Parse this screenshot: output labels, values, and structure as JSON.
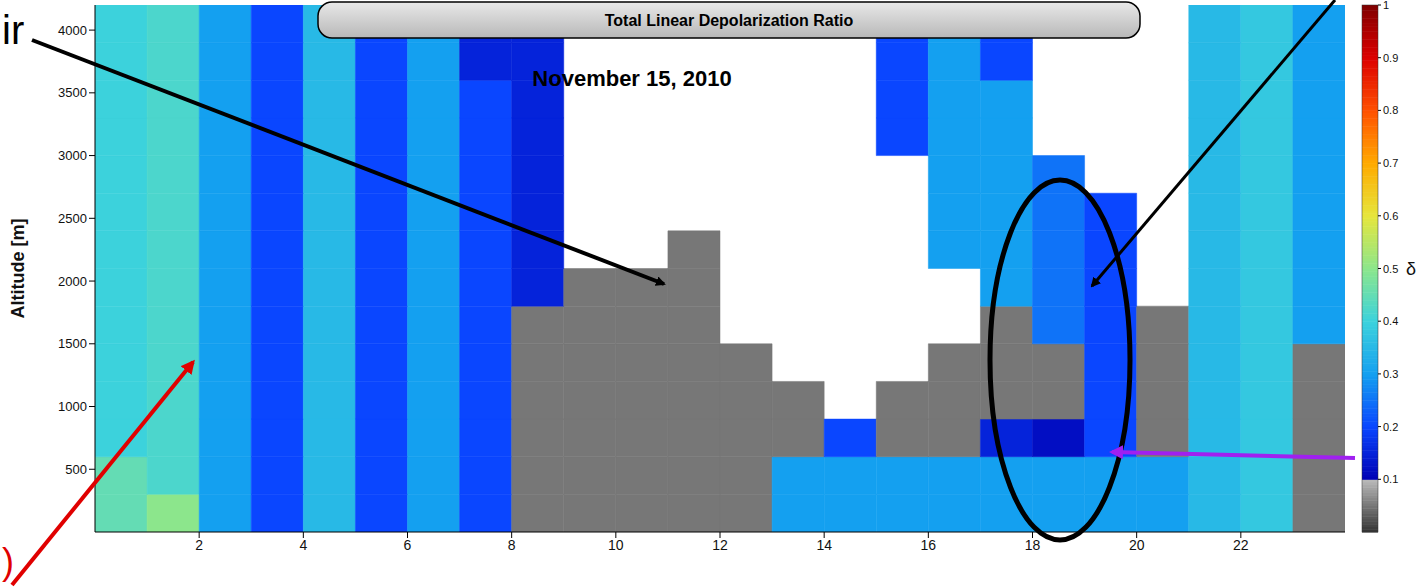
{
  "chart_data": {
    "type": "heatmap",
    "title": "Total Linear Depolarization Ratio",
    "subtitle": "November 15, 2010",
    "y_label": "Altitude [m]",
    "xlim": [
      0,
      24
    ],
    "xticks": [
      2,
      4,
      6,
      8,
      10,
      12,
      14,
      16,
      18,
      20,
      22
    ],
    "ylim": [
      0,
      4200
    ],
    "yticks": [
      500,
      1000,
      1500,
      2000,
      2500,
      3000,
      3500,
      4000
    ],
    "grid": false,
    "x_bins": [
      0,
      1,
      2,
      3,
      4,
      5,
      6,
      7,
      8,
      9,
      10,
      11,
      12,
      13,
      14,
      15,
      16,
      17,
      18,
      19,
      20,
      21,
      22,
      23,
      24
    ],
    "y_bins": [
      0,
      300,
      600,
      900,
      1200,
      1500,
      1800,
      2100,
      2400,
      2700,
      3000,
      3300,
      3600,
      3900,
      4200
    ],
    "cells": [
      [
        0.45,
        0.5,
        0.3,
        0.2,
        0.35,
        0.2,
        0.3,
        0.2,
        0.05,
        0.05,
        0.05,
        0.05,
        0.05,
        0.3,
        0.3,
        0.3,
        0.3,
        0.3,
        0.3,
        0.3,
        0.3,
        0.35,
        0.38,
        0.05
      ],
      [
        0.45,
        0.42,
        0.3,
        0.2,
        0.35,
        0.2,
        0.3,
        0.2,
        0.05,
        0.05,
        0.05,
        0.05,
        0.05,
        0.3,
        0.3,
        0.3,
        0.3,
        0.3,
        0.3,
        0.3,
        0.3,
        0.35,
        0.38,
        0.05
      ],
      [
        0.4,
        0.42,
        0.3,
        0.2,
        0.35,
        0.2,
        0.3,
        0.2,
        0.05,
        0.05,
        0.05,
        0.05,
        0.05,
        0.05,
        0.2,
        0.05,
        0.05,
        0.15,
        0.12,
        0.2,
        0.05,
        0.35,
        0.38,
        0.05
      ],
      [
        0.4,
        0.42,
        0.3,
        0.2,
        0.35,
        0.2,
        0.3,
        0.2,
        0.05,
        0.05,
        0.05,
        0.05,
        0.05,
        0.05,
        null,
        0.05,
        0.05,
        0.05,
        0.05,
        0.2,
        0.05,
        0.35,
        0.38,
        0.05
      ],
      [
        0.4,
        0.42,
        0.3,
        0.2,
        0.35,
        0.2,
        0.3,
        0.2,
        0.05,
        0.05,
        0.05,
        0.05,
        0.05,
        null,
        null,
        null,
        0.05,
        0.05,
        0.05,
        0.2,
        0.05,
        0.35,
        0.38,
        0.05
      ],
      [
        0.4,
        0.42,
        0.3,
        0.2,
        0.35,
        0.2,
        0.3,
        0.2,
        0.05,
        0.05,
        0.05,
        0.05,
        null,
        null,
        null,
        null,
        null,
        0.05,
        0.25,
        0.2,
        0.05,
        0.35,
        0.38,
        0.3
      ],
      [
        0.4,
        0.42,
        0.3,
        0.2,
        0.35,
        0.2,
        0.3,
        0.2,
        0.15,
        0.05,
        0.05,
        0.05,
        null,
        null,
        null,
        null,
        null,
        0.3,
        0.25,
        0.2,
        null,
        0.35,
        0.38,
        0.3
      ],
      [
        0.4,
        0.42,
        0.3,
        0.2,
        0.35,
        0.2,
        0.3,
        0.2,
        0.15,
        null,
        null,
        0.05,
        null,
        null,
        null,
        null,
        0.3,
        0.3,
        0.25,
        0.2,
        null,
        0.35,
        0.38,
        0.3
      ],
      [
        0.4,
        0.42,
        0.3,
        0.2,
        0.35,
        0.2,
        0.3,
        0.2,
        0.15,
        null,
        null,
        null,
        null,
        null,
        null,
        null,
        0.3,
        0.3,
        0.25,
        0.2,
        null,
        0.35,
        0.38,
        0.3
      ],
      [
        0.4,
        0.42,
        0.3,
        0.2,
        0.35,
        0.2,
        0.3,
        0.2,
        0.15,
        null,
        null,
        null,
        null,
        null,
        null,
        null,
        0.3,
        0.3,
        0.25,
        null,
        null,
        0.35,
        0.38,
        0.3
      ],
      [
        0.4,
        0.42,
        0.3,
        0.2,
        0.35,
        0.2,
        0.3,
        0.2,
        0.15,
        null,
        null,
        null,
        null,
        null,
        null,
        0.2,
        0.3,
        0.3,
        null,
        null,
        null,
        0.35,
        0.38,
        0.3
      ],
      [
        0.4,
        0.42,
        0.3,
        0.2,
        0.35,
        0.2,
        0.3,
        0.2,
        0.15,
        null,
        null,
        null,
        null,
        null,
        null,
        0.2,
        0.3,
        0.3,
        null,
        null,
        null,
        0.35,
        0.38,
        0.3
      ],
      [
        0.4,
        0.42,
        0.3,
        0.2,
        0.35,
        0.2,
        0.3,
        0.15,
        0.15,
        null,
        null,
        null,
        null,
        null,
        null,
        0.2,
        0.3,
        0.2,
        null,
        null,
        null,
        0.35,
        0.38,
        0.3
      ],
      [
        0.4,
        0.42,
        0.3,
        0.2,
        0.35,
        0.2,
        0.3,
        0.15,
        0.15,
        null,
        null,
        null,
        null,
        null,
        null,
        0.2,
        0.3,
        0.2,
        null,
        null,
        null,
        0.35,
        0.38,
        0.3
      ]
    ],
    "colorbar": {
      "range": [
        0,
        1
      ],
      "ticks": [
        0.1,
        0.2,
        0.3,
        0.4,
        0.5,
        0.6,
        0.7,
        0.8,
        0.9,
        1
      ],
      "label": "δ"
    },
    "annotations": [
      "ir",
      ")"
    ]
  }
}
